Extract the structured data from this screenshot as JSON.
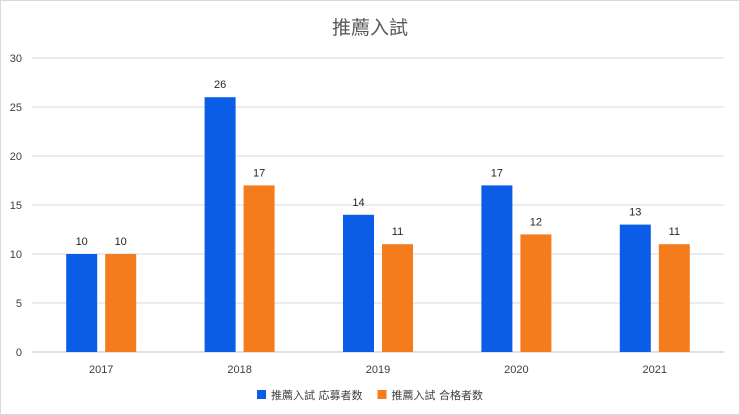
{
  "chart_data": {
    "type": "bar",
    "title": "推薦入試",
    "categories": [
      "2017",
      "2018",
      "2019",
      "2020",
      "2021"
    ],
    "series": [
      {
        "name": "推薦入試 応募者数",
        "values": [
          10,
          26,
          14,
          17,
          13
        ],
        "color": "#0b5ce6"
      },
      {
        "name": "推薦入試 合格者数",
        "values": [
          10,
          17,
          11,
          12,
          11
        ],
        "color": "#f47c1c"
      }
    ],
    "ylim": [
      0,
      30
    ],
    "yticks": [
      0,
      5,
      10,
      15,
      20,
      25,
      30
    ],
    "grid": true,
    "legend_position": "bottom",
    "data_labels": true
  }
}
